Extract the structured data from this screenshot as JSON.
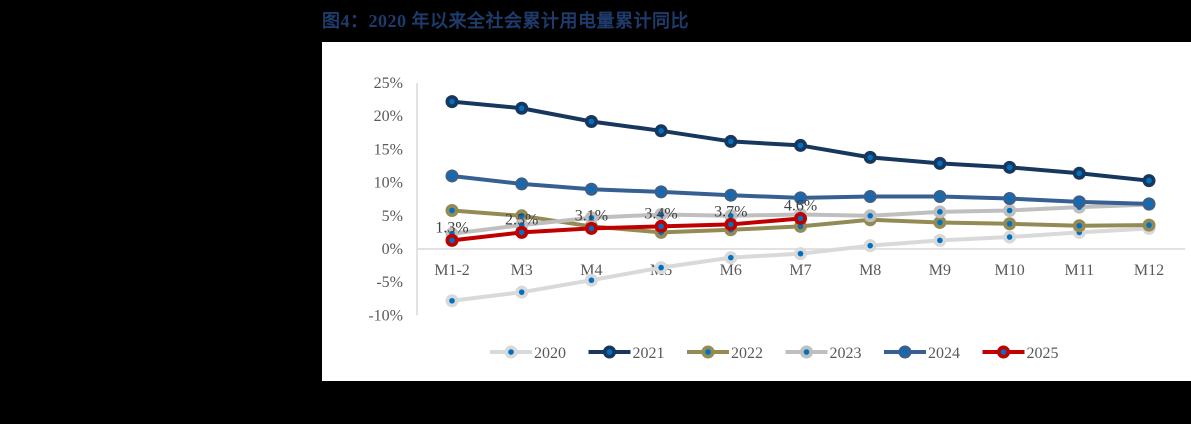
{
  "title": "图4：2020 年以来全社会累计用电量累计同比",
  "chart_data": {
    "type": "line",
    "title": "图4：2020 年以来全社会累计用电量累计同比",
    "xlabel": "",
    "ylabel": "",
    "categories": [
      "M1-2",
      "M3",
      "M4",
      "M5",
      "M6",
      "M7",
      "M8",
      "M9",
      "M10",
      "M11",
      "M12"
    ],
    "y_ticks": [
      "25%",
      "20%",
      "15%",
      "10%",
      "5%",
      "0%",
      "-5%",
      "-10%"
    ],
    "ylim": [
      -10,
      25
    ],
    "grid": false,
    "legend_position": "bottom",
    "series": [
      {
        "name": "2020",
        "color": "#D9D9D9",
        "values": [
          -7.8,
          -6.5,
          -4.7,
          -2.8,
          -1.3,
          -0.7,
          0.5,
          1.3,
          1.8,
          2.5,
          3.1
        ]
      },
      {
        "name": "2021",
        "color": "#17375E",
        "values": [
          22.2,
          21.2,
          19.2,
          17.8,
          16.2,
          15.6,
          13.8,
          12.9,
          12.3,
          11.4,
          10.3
        ]
      },
      {
        "name": "2022",
        "color": "#948A54",
        "values": [
          5.8,
          5.0,
          3.4,
          2.5,
          2.9,
          3.4,
          4.4,
          4.0,
          3.8,
          3.5,
          3.6
        ]
      },
      {
        "name": "2023",
        "color": "#BFBFBF",
        "values": [
          2.3,
          3.6,
          4.7,
          5.2,
          5.0,
          5.2,
          5.0,
          5.6,
          5.8,
          6.3,
          6.7
        ]
      },
      {
        "name": "2024",
        "color": "#366092",
        "values": [
          11.0,
          9.8,
          9.0,
          8.6,
          8.1,
          7.7,
          7.9,
          7.9,
          7.6,
          7.1,
          6.8
        ]
      },
      {
        "name": "2025",
        "color": "#C00000",
        "values": [
          1.3,
          2.5,
          3.1,
          3.4,
          3.7,
          4.6,
          null,
          null,
          null,
          null,
          null
        ]
      }
    ],
    "data_labels": {
      "series": "2025",
      "labels": [
        "1.3%",
        "2.5%",
        "3.1%",
        "3.4%",
        "3.7%",
        "4.6%"
      ]
    },
    "marker_inner_color": "#0070C0"
  }
}
